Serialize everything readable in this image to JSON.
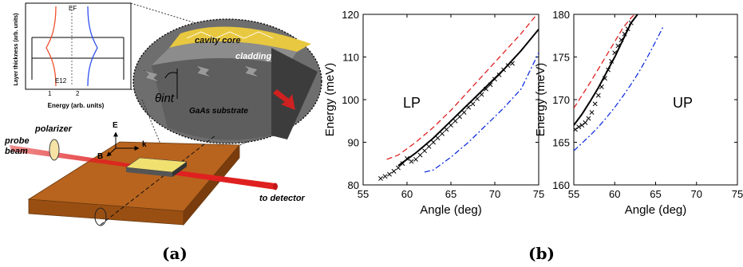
{
  "panel_a": {
    "caption": "(a)",
    "inset": {
      "ylabel": "Layer thickness (arb. units)",
      "xlabel": "Energy (arb. units)",
      "ef_label": "EF",
      "e12_label": "E12",
      "label_1": "1",
      "label_2": "2"
    },
    "schematic": {
      "cavity_core": "cavity core",
      "cladding": "cladding",
      "theta": "θint",
      "substrate": "GaAs substrate",
      "polarizer": "polarizer",
      "probe_beam_1": "probe",
      "probe_beam_2": "beam",
      "e_label": "E",
      "b_label": "B",
      "k_label": "k",
      "detector": "to detector"
    },
    "colors": {
      "base": "#b8641e",
      "sample": "#f0e070",
      "beam": "#e02020",
      "ellipse": "#606060"
    }
  },
  "panel_b": {
    "caption": "(b)"
  },
  "chart_data": [
    {
      "type": "line",
      "xlabel": "Angle (deg)",
      "ylabel": "Energy (meV)",
      "xlim": [
        55,
        75
      ],
      "ylim": [
        80,
        120
      ],
      "xticks": [
        "55",
        "60",
        "65",
        "70",
        "75"
      ],
      "yticks": [
        "80",
        "90",
        "100",
        "110",
        "120"
      ],
      "annotation": "LP",
      "series": [
        {
          "style": "solid-black",
          "color": "#000000",
          "x": [
            59,
            61,
            63,
            65,
            67,
            69,
            71,
            73,
            75
          ],
          "y": [
            84.5,
            87.5,
            91,
            95,
            99,
            103,
            107,
            111.5,
            116.5
          ]
        },
        {
          "style": "dashed-red",
          "color": "#e02020",
          "x": [
            57.7,
            59,
            61,
            63,
            65,
            67,
            69,
            71,
            73,
            75
          ],
          "y": [
            86,
            87,
            90,
            93.5,
            97.5,
            102,
            106.5,
            111,
            115.5,
            120.5
          ]
        },
        {
          "style": "dashdot-blue",
          "color": "#1030e0",
          "x": [
            62,
            63,
            65,
            67,
            69,
            71,
            73,
            75
          ],
          "y": [
            83,
            83.5,
            86.5,
            90,
            94,
            98,
            102.5,
            111
          ]
        },
        {
          "style": "markers-x",
          "color": "#000000",
          "x": [
            57,
            57.5,
            58,
            58.5,
            59,
            59.5,
            60,
            60.5,
            61,
            61.5,
            62,
            62.5,
            63,
            63.5,
            64,
            64.5,
            65,
            65.5,
            66,
            66.5,
            67,
            67.5,
            68,
            68.5,
            69,
            69.5,
            70,
            70.5,
            71,
            71.5,
            72
          ],
          "y": [
            81.5,
            82,
            82.5,
            83.2,
            84,
            85,
            86.2,
            85.5,
            86,
            87,
            88,
            89,
            90,
            91,
            92,
            93,
            94,
            95,
            96,
            97,
            98.2,
            99,
            100.2,
            101.2,
            102.5,
            103.5,
            104.8,
            105.8,
            107,
            108,
            108.5
          ]
        }
      ]
    },
    {
      "type": "line",
      "xlabel": "Angle (deg)",
      "ylabel": "Energy (meV)",
      "xlim": [
        55,
        75
      ],
      "ylim": [
        160,
        180
      ],
      "xticks": [
        "55",
        "60",
        "65",
        "70",
        "75"
      ],
      "yticks": [
        "160",
        "165",
        "170",
        "175",
        "180"
      ],
      "annotation": "UP",
      "series": [
        {
          "style": "solid-black",
          "color": "#000000",
          "x": [
            55,
            56,
            57,
            58,
            59,
            60,
            61,
            62,
            62.8
          ],
          "y": [
            167,
            168.3,
            169.8,
            171.4,
            173.2,
            175,
            177,
            179,
            180
          ]
        },
        {
          "style": "dashed-red",
          "color": "#e02020",
          "x": [
            55,
            56,
            57,
            58,
            59,
            60,
            61,
            62,
            62.8
          ],
          "y": [
            169,
            170.5,
            172,
            173.6,
            175.2,
            176.8,
            178.4,
            179.6,
            180.3
          ]
        },
        {
          "style": "dashdot-blue",
          "color": "#1030e0",
          "x": [
            55,
            56,
            57,
            58,
            59,
            60,
            61,
            62,
            63,
            64,
            65,
            66
          ],
          "y": [
            164,
            164.9,
            165.8,
            166.8,
            167.9,
            169.1,
            170.4,
            171.8,
            173.3,
            175,
            176.8,
            178.7
          ]
        },
        {
          "style": "markers-x",
          "color": "#000000",
          "x": [
            55.2,
            55.6,
            56,
            56.4,
            56.8,
            57.2,
            57.6,
            58,
            58.4,
            58.8,
            59.2,
            59.6,
            60,
            60.4,
            60.8,
            61.2,
            61.6,
            62
          ],
          "y": [
            166.5,
            166.8,
            167,
            167.3,
            167.8,
            168.5,
            169.5,
            170.5,
            171.5,
            172.5,
            173.5,
            174.5,
            175.5,
            176.3,
            177,
            177.7,
            178.3,
            179
          ]
        }
      ]
    }
  ]
}
